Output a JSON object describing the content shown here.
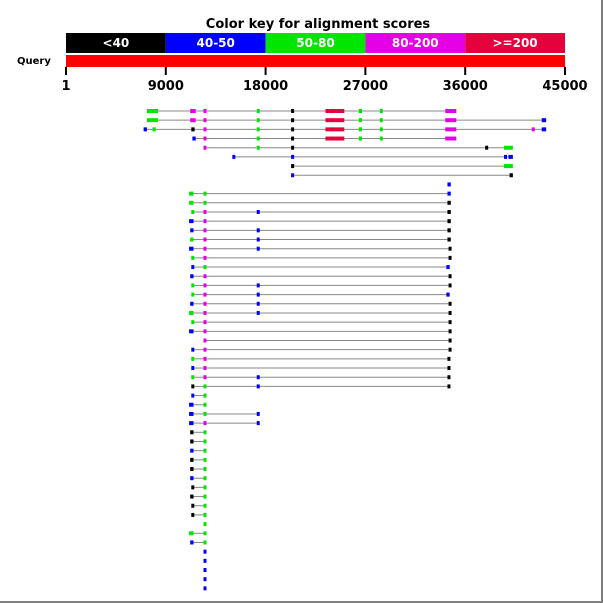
{
  "title": "Color key for alignment scores",
  "query_label": "Query",
  "axis": {
    "min": 1,
    "max": 45000,
    "ticks": [
      1,
      9000,
      18000,
      27000,
      36000,
      45000
    ]
  },
  "colors": {
    "black": "#000000",
    "blue": "#0000ff",
    "green": "#00e600",
    "magenta": "#e600e6",
    "red": "#e6003c",
    "connector": "#888888",
    "query_bar": "#ff0000"
  },
  "color_key": [
    {
      "label": "<40",
      "color": "black"
    },
    {
      "label": "40-50",
      "color": "blue"
    },
    {
      "label": "50-80",
      "color": "green"
    },
    {
      "label": "80-200",
      "color": "magenta"
    },
    {
      "label": ">=200",
      "color": "red"
    }
  ],
  "hits": [
    {
      "segments": [
        [
          7300,
          8300,
          "green"
        ],
        [
          11200,
          11700,
          "magenta"
        ],
        [
          12400,
          12600,
          "magenta"
        ],
        [
          17200,
          17300,
          "green"
        ],
        [
          20300,
          20500,
          "black"
        ],
        [
          23400,
          25100,
          "red"
        ],
        [
          26400,
          26700,
          "green"
        ],
        [
          28300,
          28500,
          "green"
        ],
        [
          34200,
          35200,
          "magenta"
        ]
      ]
    },
    {
      "segments": [
        [
          7300,
          8300,
          "green"
        ],
        [
          11200,
          11700,
          "magenta"
        ],
        [
          12400,
          12600,
          "magenta"
        ],
        [
          17200,
          17300,
          "green"
        ],
        [
          20300,
          20500,
          "black"
        ],
        [
          23400,
          25100,
          "red"
        ],
        [
          26400,
          26700,
          "green"
        ],
        [
          28300,
          28500,
          "green"
        ],
        [
          34200,
          35200,
          "magenta"
        ],
        [
          42900,
          43300,
          "blue"
        ]
      ]
    },
    {
      "segments": [
        [
          7000,
          7300,
          "blue"
        ],
        [
          7800,
          8100,
          "green"
        ],
        [
          11300,
          11600,
          "black"
        ],
        [
          12400,
          12600,
          "magenta"
        ],
        [
          17200,
          17300,
          "green"
        ],
        [
          20300,
          20500,
          "black"
        ],
        [
          23400,
          25100,
          "red"
        ],
        [
          26400,
          26700,
          "green"
        ],
        [
          28300,
          28500,
          "green"
        ],
        [
          34200,
          35200,
          "magenta"
        ],
        [
          42000,
          42100,
          "magenta"
        ],
        [
          42900,
          43300,
          "blue"
        ]
      ]
    },
    {
      "segments": [
        [
          11400,
          11700,
          "blue"
        ],
        [
          12400,
          12600,
          "magenta"
        ],
        [
          17200,
          17300,
          "green"
        ],
        [
          20300,
          20500,
          "black"
        ],
        [
          23400,
          25100,
          "red"
        ],
        [
          26400,
          26700,
          "green"
        ],
        [
          28300,
          28500,
          "green"
        ],
        [
          34200,
          35200,
          "magenta"
        ]
      ]
    },
    {
      "segments": [
        [
          12400,
          12600,
          "magenta"
        ],
        [
          17200,
          17300,
          "green"
        ],
        [
          20300,
          20500,
          "black"
        ],
        [
          37800,
          38000,
          "black"
        ],
        [
          39500,
          40300,
          "green"
        ]
      ]
    },
    {
      "segments": [
        [
          15000,
          15200,
          "blue"
        ],
        [
          20300,
          20500,
          "blue"
        ],
        [
          39500,
          39700,
          "blue"
        ],
        [
          39900,
          40300,
          "blue"
        ]
      ]
    },
    {
      "segments": [
        [
          20300,
          20500,
          "black"
        ],
        [
          39500,
          40300,
          "green"
        ]
      ]
    },
    {
      "segments": [
        [
          20300,
          20500,
          "blue"
        ],
        [
          40000,
          40300,
          "black"
        ]
      ]
    },
    {
      "segments": [
        [
          34400,
          34700,
          "blue"
        ]
      ]
    },
    {
      "segments": [
        [
          11100,
          11500,
          "green"
        ],
        [
          12400,
          12600,
          "green"
        ],
        [
          34400,
          34700,
          "blue"
        ]
      ]
    },
    {
      "segments": [
        [
          11100,
          11500,
          "green"
        ],
        [
          12400,
          12600,
          "green"
        ],
        [
          34400,
          34700,
          "black"
        ]
      ]
    },
    {
      "segments": [
        [
          11300,
          11500,
          "green"
        ],
        [
          12400,
          12600,
          "magenta"
        ],
        [
          17200,
          17300,
          "blue"
        ],
        [
          34400,
          34700,
          "black"
        ]
      ]
    },
    {
      "segments": [
        [
          11100,
          11500,
          "blue"
        ],
        [
          12400,
          12600,
          "magenta"
        ],
        [
          34400,
          34700,
          "black"
        ]
      ]
    },
    {
      "segments": [
        [
          11200,
          11500,
          "blue"
        ],
        [
          12400,
          12600,
          "magenta"
        ],
        [
          17200,
          17300,
          "blue"
        ],
        [
          34400,
          34700,
          "black"
        ]
      ]
    },
    {
      "segments": [
        [
          11200,
          11500,
          "green"
        ],
        [
          12400,
          12600,
          "magenta"
        ],
        [
          17200,
          17300,
          "blue"
        ],
        [
          34400,
          34700,
          "black"
        ]
      ]
    },
    {
      "segments": [
        [
          11100,
          11500,
          "blue"
        ],
        [
          12400,
          12600,
          "magenta"
        ],
        [
          17200,
          17300,
          "blue"
        ],
        [
          34500,
          34700,
          "black"
        ]
      ]
    },
    {
      "segments": [
        [
          11300,
          11500,
          "green"
        ],
        [
          12400,
          12600,
          "magenta"
        ],
        [
          34500,
          34700,
          "black"
        ]
      ]
    },
    {
      "segments": [
        [
          11300,
          11500,
          "blue"
        ],
        [
          12400,
          12600,
          "green"
        ],
        [
          34300,
          34600,
          "blue"
        ]
      ]
    },
    {
      "segments": [
        [
          11200,
          11500,
          "blue"
        ],
        [
          12400,
          12600,
          "magenta"
        ],
        [
          34500,
          34700,
          "black"
        ]
      ]
    },
    {
      "segments": [
        [
          11300,
          11500,
          "green"
        ],
        [
          12400,
          12600,
          "magenta"
        ],
        [
          17200,
          17300,
          "blue"
        ],
        [
          34500,
          34700,
          "black"
        ]
      ]
    },
    {
      "segments": [
        [
          11300,
          11500,
          "green"
        ],
        [
          12400,
          12600,
          "magenta"
        ],
        [
          17200,
          17300,
          "blue"
        ],
        [
          34300,
          34600,
          "blue"
        ]
      ]
    },
    {
      "segments": [
        [
          11200,
          11500,
          "blue"
        ],
        [
          12400,
          12600,
          "magenta"
        ],
        [
          17200,
          17300,
          "blue"
        ],
        [
          34500,
          34700,
          "black"
        ]
      ]
    },
    {
      "segments": [
        [
          11100,
          11500,
          "green"
        ],
        [
          12400,
          12600,
          "magenta"
        ],
        [
          17200,
          17300,
          "blue"
        ],
        [
          34500,
          34700,
          "black"
        ]
      ]
    },
    {
      "segments": [
        [
          11300,
          11500,
          "green"
        ],
        [
          12400,
          12600,
          "magenta"
        ],
        [
          34500,
          34700,
          "black"
        ]
      ]
    },
    {
      "segments": [
        [
          11100,
          11500,
          "blue"
        ],
        [
          12400,
          12600,
          "magenta"
        ],
        [
          34500,
          34700,
          "black"
        ]
      ]
    },
    {
      "segments": [
        [
          12400,
          12600,
          "magenta"
        ],
        [
          34500,
          34700,
          "black"
        ]
      ]
    },
    {
      "segments": [
        [
          11300,
          11500,
          "blue"
        ],
        [
          12400,
          12600,
          "magenta"
        ],
        [
          34500,
          34700,
          "black"
        ]
      ]
    },
    {
      "segments": [
        [
          11300,
          11500,
          "green"
        ],
        [
          12400,
          12600,
          "magenta"
        ],
        [
          34400,
          34600,
          "black"
        ]
      ]
    },
    {
      "segments": [
        [
          11300,
          11500,
          "blue"
        ],
        [
          12400,
          12600,
          "magenta"
        ],
        [
          34400,
          34600,
          "black"
        ]
      ]
    },
    {
      "segments": [
        [
          11300,
          11500,
          "green"
        ],
        [
          12400,
          12600,
          "magenta"
        ],
        [
          17200,
          17300,
          "blue"
        ],
        [
          34400,
          34600,
          "black"
        ]
      ]
    },
    {
      "segments": [
        [
          11300,
          11500,
          "black"
        ],
        [
          12400,
          12600,
          "green"
        ],
        [
          17200,
          17300,
          "blue"
        ],
        [
          34400,
          34600,
          "black"
        ]
      ]
    },
    {
      "segments": [
        [
          11300,
          11500,
          "blue"
        ],
        [
          12400,
          12600,
          "green"
        ]
      ]
    },
    {
      "segments": [
        [
          11100,
          11500,
          "blue"
        ],
        [
          12400,
          12600,
          "green"
        ]
      ]
    },
    {
      "segments": [
        [
          11100,
          11500,
          "blue"
        ],
        [
          12400,
          12600,
          "green"
        ],
        [
          17200,
          17300,
          "blue"
        ]
      ]
    },
    {
      "segments": [
        [
          11100,
          11500,
          "blue"
        ],
        [
          12400,
          12600,
          "magenta"
        ],
        [
          17200,
          17300,
          "blue"
        ]
      ]
    },
    {
      "segments": [
        [
          11200,
          11500,
          "black"
        ],
        [
          12400,
          12600,
          "green"
        ]
      ]
    },
    {
      "segments": [
        [
          11200,
          11500,
          "black"
        ],
        [
          12400,
          12600,
          "green"
        ]
      ]
    },
    {
      "segments": [
        [
          11200,
          11500,
          "blue"
        ],
        [
          12400,
          12600,
          "green"
        ]
      ]
    },
    {
      "segments": [
        [
          11200,
          11500,
          "black"
        ],
        [
          12400,
          12600,
          "green"
        ]
      ]
    },
    {
      "segments": [
        [
          11200,
          11500,
          "black"
        ],
        [
          12400,
          12600,
          "green"
        ]
      ]
    },
    {
      "segments": [
        [
          11200,
          11500,
          "blue"
        ],
        [
          12400,
          12600,
          "green"
        ]
      ]
    },
    {
      "segments": [
        [
          11300,
          11400,
          "black"
        ],
        [
          12400,
          12600,
          "green"
        ]
      ]
    },
    {
      "segments": [
        [
          11200,
          11500,
          "black"
        ],
        [
          12400,
          12600,
          "green"
        ]
      ]
    },
    {
      "segments": [
        [
          11300,
          11400,
          "black"
        ],
        [
          12400,
          12600,
          "green"
        ]
      ]
    },
    {
      "segments": [
        [
          11300,
          11400,
          "black"
        ],
        [
          12400,
          12600,
          "green"
        ]
      ]
    },
    {
      "segments": [
        [
          12400,
          12600,
          "green"
        ]
      ]
    },
    {
      "segments": [
        [
          11100,
          11500,
          "green"
        ],
        [
          12400,
          12600,
          "green"
        ]
      ]
    },
    {
      "segments": [
        [
          11200,
          11500,
          "blue"
        ],
        [
          12400,
          12600,
          "green"
        ]
      ]
    },
    {
      "segments": [
        [
          12400,
          12600,
          "blue"
        ]
      ]
    },
    {
      "segments": [
        [
          12400,
          12600,
          "blue"
        ]
      ]
    },
    {
      "segments": [
        [
          12400,
          12600,
          "blue"
        ]
      ]
    },
    {
      "segments": [
        [
          12400,
          12600,
          "blue"
        ]
      ]
    },
    {
      "segments": [
        [
          12400,
          12600,
          "blue"
        ]
      ]
    }
  ]
}
